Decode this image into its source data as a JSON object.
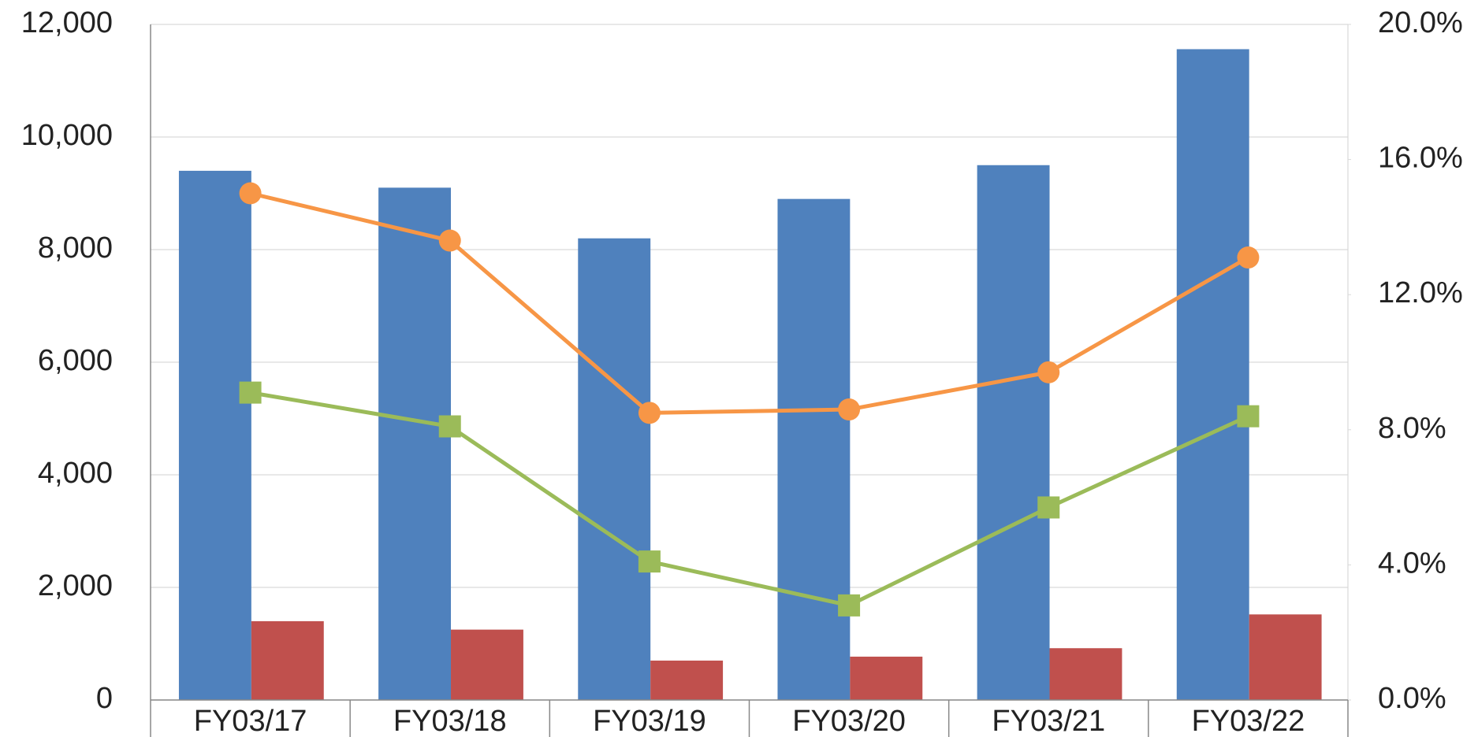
{
  "chart_data": {
    "type": "bar_line",
    "categories": [
      "FY03/17",
      "FY03/18",
      "FY03/19",
      "FY03/20",
      "FY03/21",
      "FY03/22"
    ],
    "series": [
      {
        "type": "bar",
        "color": "#4f81bd",
        "values": [
          9400,
          9100,
          8200,
          8900,
          9500,
          11560
        ]
      },
      {
        "type": "bar",
        "color": "#c0504d",
        "values": [
          1400,
          1250,
          700,
          770,
          920,
          1520
        ]
      },
      {
        "type": "line",
        "marker": "circle",
        "axis": "y2",
        "color": "#f79646",
        "values": [
          15.0,
          13.6,
          8.5,
          8.6,
          9.7,
          13.1
        ]
      },
      {
        "type": "line",
        "marker": "square",
        "axis": "y2",
        "color": "#9bbb59",
        "values": [
          9.1,
          8.1,
          4.1,
          2.8,
          5.7,
          8.4
        ]
      }
    ],
    "ylim": [
      0,
      12000
    ],
    "yticks": [
      0,
      {
        "value": 2000,
        "label": "2,000"
      },
      {
        "value": 4000,
        "label": "4,000"
      },
      {
        "value": 6000,
        "label": "6,000"
      },
      {
        "value": 8000,
        "label": "8,000"
      },
      {
        "value": 10000,
        "label": "10,000"
      },
      {
        "value": 12000,
        "label": "12,000"
      }
    ],
    "y2lim": [
      0,
      20
    ],
    "y2ticks": [
      {
        "value": 0,
        "label": "0.0%"
      },
      {
        "value": 4,
        "label": "4.0%"
      },
      {
        "value": 8,
        "label": "8.0%"
      },
      {
        "value": 12,
        "label": "12.0%"
      },
      {
        "value": 16,
        "label": "16.0%"
      },
      {
        "value": 20,
        "label": "20.0%"
      }
    ],
    "grid": true
  }
}
